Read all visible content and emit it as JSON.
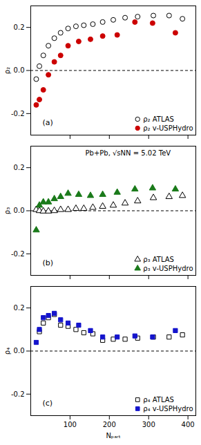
{
  "chart_data": [
    {
      "type": "scatter",
      "ylabel": "ρ₂",
      "annotations": [
        "(a)"
      ],
      "series": [
        {
          "name": "ρ₂ ATLAS",
          "color": "black",
          "marker": "open-circle",
          "x": [
            14,
            22,
            32,
            45,
            60,
            76,
            95,
            115,
            135,
            158,
            183,
            210,
            240,
            272,
            312,
            352,
            386
          ],
          "values": [
            -0.04,
            0.02,
            0.07,
            0.115,
            0.15,
            0.175,
            0.195,
            0.205,
            0.21,
            0.215,
            0.225,
            0.235,
            0.245,
            0.25,
            0.255,
            0.255,
            0.24
          ]
        },
        {
          "name": "ρ₂ v-USPHydro",
          "color": "#cc0000",
          "marker": "circle",
          "x": [
            14,
            22,
            32,
            45,
            60,
            76,
            95,
            122,
            152,
            183,
            220,
            265,
            310,
            368
          ],
          "values": [
            -0.16,
            -0.135,
            -0.09,
            -0.02,
            0.04,
            0.07,
            0.115,
            0.135,
            0.145,
            0.16,
            0.165,
            0.225,
            0.22,
            0.175
          ]
        }
      ],
      "hline": 0,
      "xlim": [
        0,
        420
      ],
      "xticks": [
        100,
        200,
        300,
        400
      ],
      "ylim": [
        -0.3,
        0.3
      ],
      "yticks": [
        -0.2,
        {
          "value": 0,
          "label": "0.0"
        },
        0.2
      ],
      "tick_labels": "y",
      "legend": "lower right"
    },
    {
      "type": "scatter",
      "ylabel": "ρ₃",
      "annotations": [
        "(b)",
        "Pb+Pb, √sNN = 5.02 TeV"
      ],
      "series": [
        {
          "name": "ρ₃ ATLAS",
          "color": "black",
          "marker": "open-triangle",
          "x": [
            14,
            22,
            32,
            45,
            60,
            76,
            95,
            115,
            135,
            158,
            183,
            210,
            240,
            272,
            312,
            352,
            386
          ],
          "values": [
            0.005,
            0.0,
            -0.002,
            -0.002,
            0.0,
            0.005,
            0.005,
            0.01,
            0.01,
            0.015,
            0.02,
            0.025,
            0.035,
            0.045,
            0.06,
            0.065,
            0.07
          ]
        },
        {
          "name": "ρ₃ v-USPHydro",
          "color": "#1a7a1a",
          "marker": "triangle",
          "x": [
            14,
            22,
            32,
            45,
            60,
            76,
            95,
            122,
            152,
            183,
            220,
            265,
            310,
            368
          ],
          "values": [
            -0.09,
            0.025,
            0.04,
            0.04,
            0.055,
            0.065,
            0.08,
            0.075,
            0.07,
            0.075,
            0.085,
            0.1,
            0.105,
            0.1
          ]
        }
      ],
      "hline": 0,
      "xlim": [
        0,
        420
      ],
      "xticks": [
        100,
        200,
        300,
        400
      ],
      "ylim": [
        -0.3,
        0.3
      ],
      "yticks": [
        -0.2,
        {
          "value": 0,
          "label": "0.0"
        },
        0.2
      ],
      "tick_labels": "y",
      "legend": "lower right"
    },
    {
      "type": "scatter",
      "ylabel": "ρ₄",
      "xlabel": "Nₚₐᵣₜ",
      "annotations": [
        "(c)"
      ],
      "series": [
        {
          "name": "ρ₄ ATLAS",
          "color": "black",
          "marker": "open-square",
          "x": [
            22,
            32,
            45,
            60,
            76,
            95,
            115,
            135,
            158,
            183,
            210,
            240,
            272,
            312,
            352,
            386
          ],
          "values": [
            0.09,
            0.13,
            0.155,
            0.17,
            0.12,
            0.115,
            0.1,
            0.085,
            0.08,
            0.05,
            0.055,
            0.055,
            0.06,
            0.065,
            0.065,
            0.075
          ]
        },
        {
          "name": "ρ₄ v-USPHydro",
          "color": "#1414cc",
          "marker": "square",
          "x": [
            14,
            22,
            32,
            45,
            60,
            76,
            95,
            122,
            152,
            183,
            220,
            265,
            310,
            368
          ],
          "values": [
            0.04,
            0.1,
            0.155,
            0.165,
            0.175,
            0.145,
            0.13,
            0.12,
            0.095,
            0.065,
            0.065,
            0.07,
            0.065,
            0.095
          ]
        }
      ],
      "hline": 0,
      "xlim": [
        0,
        420
      ],
      "xticks": [
        100,
        200,
        300,
        400
      ],
      "ylim": [
        -0.3,
        0.3
      ],
      "yticks": [
        -0.2,
        {
          "value": 0,
          "label": "0.0"
        },
        0.2
      ],
      "legend": "lower right"
    }
  ]
}
